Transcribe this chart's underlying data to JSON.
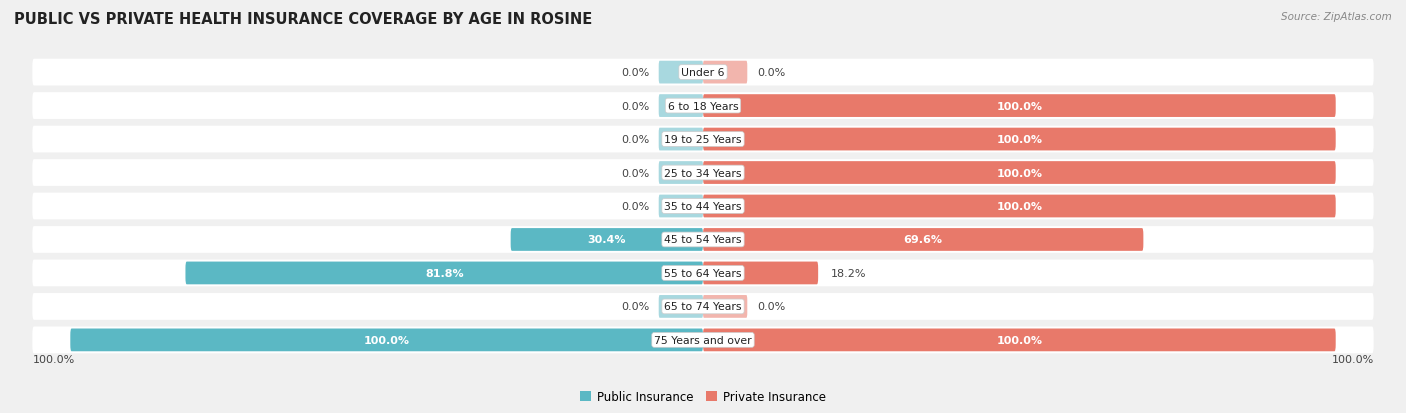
{
  "title": "PUBLIC VS PRIVATE HEALTH INSURANCE COVERAGE BY AGE IN ROSINE",
  "source": "Source: ZipAtlas.com",
  "categories": [
    "Under 6",
    "6 to 18 Years",
    "19 to 25 Years",
    "25 to 34 Years",
    "35 to 44 Years",
    "45 to 54 Years",
    "55 to 64 Years",
    "65 to 74 Years",
    "75 Years and over"
  ],
  "public_values": [
    0.0,
    0.0,
    0.0,
    0.0,
    0.0,
    30.4,
    81.8,
    0.0,
    100.0
  ],
  "private_values": [
    0.0,
    100.0,
    100.0,
    100.0,
    100.0,
    69.6,
    18.2,
    0.0,
    100.0
  ],
  "public_color": "#5bb8c4",
  "private_color": "#e8796a",
  "public_color_light": "#a8d8df",
  "private_color_light": "#f2b5ad",
  "bg_color": "#f0f0f0",
  "bar_bg_color": "#ffffff",
  "title_color": "#222222",
  "label_color": "#444444",
  "axis_label_left": "100.0%",
  "axis_label_right": "100.0%",
  "bar_height": 0.68,
  "legend_labels": [
    "Public Insurance",
    "Private Insurance"
  ],
  "stub_size": 7.0
}
